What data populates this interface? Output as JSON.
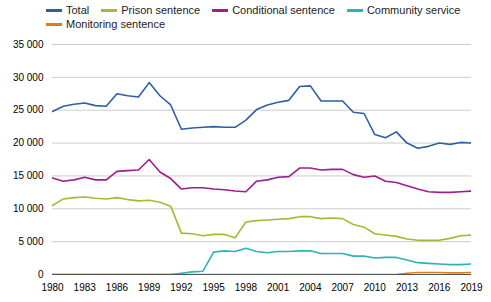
{
  "chart_data": {
    "type": "line",
    "x": [
      1980,
      1981,
      1982,
      1983,
      1984,
      1985,
      1986,
      1987,
      1988,
      1989,
      1990,
      1991,
      1992,
      1993,
      1994,
      1995,
      1996,
      1997,
      1998,
      1999,
      2000,
      2001,
      2002,
      2003,
      2004,
      2005,
      2006,
      2007,
      2008,
      2009,
      2010,
      2011,
      2012,
      2013,
      2014,
      2015,
      2016,
      2017,
      2018,
      2019
    ],
    "series": [
      {
        "name": "Total",
        "color": "#2e5fa3",
        "values": [
          24800,
          25600,
          25900,
          26100,
          25700,
          25600,
          27500,
          27200,
          27000,
          29200,
          27200,
          25800,
          22100,
          22300,
          22400,
          22500,
          22400,
          22400,
          23500,
          25100,
          25800,
          26200,
          26500,
          28600,
          28700,
          26400,
          26400,
          26400,
          24700,
          24500,
          21300,
          20800,
          21700,
          20000,
          19200,
          19500,
          20000,
          19800,
          20100,
          20000
        ]
      },
      {
        "name": "Prison sentence",
        "color": "#a8b832",
        "values": [
          10500,
          11500,
          11700,
          11800,
          11600,
          11500,
          11700,
          11400,
          11200,
          11300,
          11000,
          10400,
          6300,
          6200,
          5900,
          6100,
          6100,
          5600,
          8000,
          8200,
          8300,
          8400,
          8500,
          8800,
          8800,
          8500,
          8600,
          8500,
          7600,
          7200,
          6200,
          6000,
          5800,
          5400,
          5200,
          5200,
          5200,
          5500,
          5900,
          6000
        ]
      },
      {
        "name": "Conditional sentence",
        "color": "#9b1f8a",
        "values": [
          14700,
          14200,
          14400,
          14800,
          14400,
          14400,
          15700,
          15800,
          15900,
          17500,
          15600,
          14600,
          13000,
          13200,
          13200,
          13000,
          12900,
          12700,
          12600,
          14200,
          14400,
          14800,
          14900,
          16200,
          16200,
          15900,
          16000,
          16000,
          15200,
          14800,
          15000,
          14200,
          14000,
          13500,
          13000,
          12600,
          12500,
          12500,
          12600,
          12700
        ]
      },
      {
        "name": "Community service",
        "color": "#2db3b3",
        "values": [
          0,
          0,
          0,
          0,
          0,
          0,
          0,
          0,
          0,
          0,
          0,
          0,
          200,
          400,
          500,
          3400,
          3600,
          3500,
          4000,
          3500,
          3300,
          3500,
          3500,
          3600,
          3600,
          3200,
          3200,
          3200,
          2800,
          2800,
          2500,
          2600,
          2600,
          2200,
          1800,
          1700,
          1600,
          1500,
          1500,
          1600
        ]
      },
      {
        "name": "Monitoring sentence",
        "color": "#e07b20",
        "values": [
          0,
          0,
          0,
          0,
          0,
          0,
          0,
          0,
          0,
          0,
          0,
          0,
          0,
          0,
          0,
          0,
          0,
          0,
          0,
          0,
          0,
          0,
          0,
          0,
          0,
          0,
          0,
          0,
          0,
          0,
          0,
          0,
          0,
          200,
          300,
          300,
          300,
          250,
          250,
          300
        ]
      }
    ],
    "xlim": [
      1980,
      2019
    ],
    "xticks": [
      1980,
      1983,
      1986,
      1989,
      1992,
      1995,
      1998,
      2001,
      2004,
      2007,
      2010,
      2013,
      2016,
      2019
    ],
    "ylim": [
      0,
      35000
    ],
    "yticks": [
      0,
      {
        "value": 5000,
        "label": "5 000"
      },
      {
        "value": 10000,
        "label": "10 000"
      },
      {
        "value": 15000,
        "label": "15 000"
      },
      {
        "value": 20000,
        "label": "20 000"
      },
      {
        "value": 25000,
        "label": "25 000"
      },
      {
        "value": 30000,
        "label": "30 000"
      },
      {
        "value": 35000,
        "label": "35 000"
      }
    ],
    "grid": "y",
    "legend": "upper left"
  }
}
